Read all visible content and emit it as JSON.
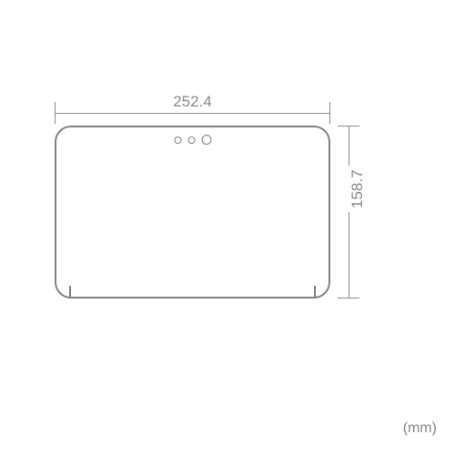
{
  "diagram": {
    "type": "technical-drawing",
    "width_mm": "252.4",
    "height_mm": "158.7",
    "unit": "(mm)",
    "stroke_color": "#808080",
    "dimension_color": "#888888",
    "background_color": "#ffffff",
    "corner_radius": 18,
    "outline_width": 2,
    "label_fontsize": 17,
    "unit_fontsize": 16,
    "camera": {
      "count": 3,
      "dot_colors": [
        "#808080",
        "#808080",
        "#808080"
      ]
    }
  }
}
